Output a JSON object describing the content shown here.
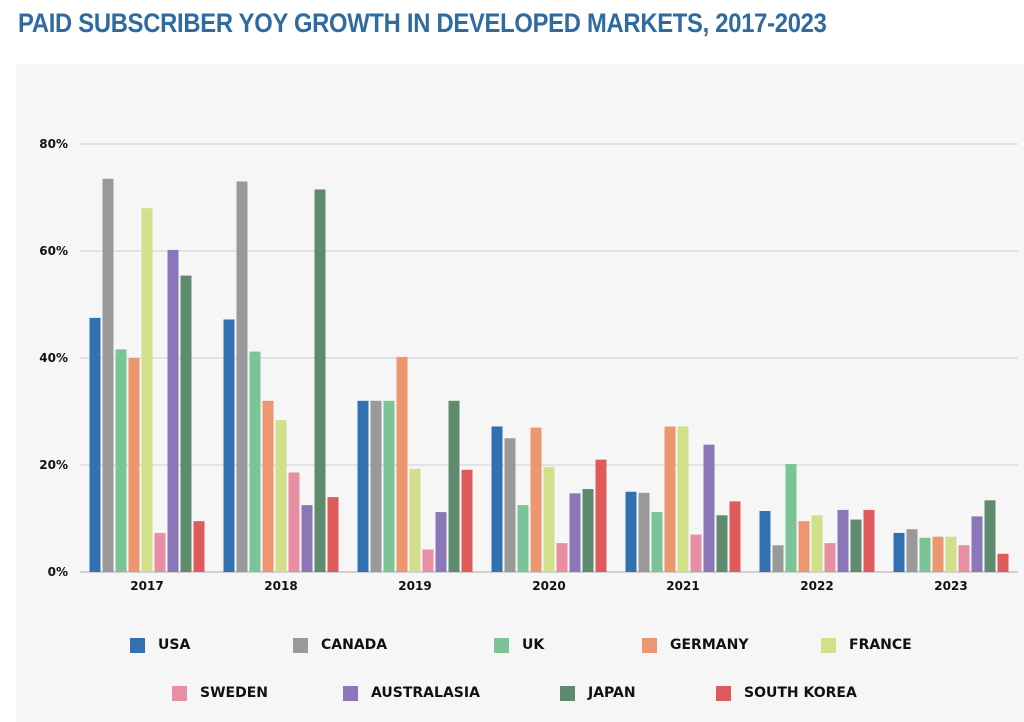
{
  "chart_data": {
    "type": "bar",
    "title": "PAID SUBSCRIBER YOY GROWTH IN DEVELOPED MARKETS, 2017-2023",
    "xlabel": "",
    "ylabel": "",
    "ylim": [
      0,
      80
    ],
    "yticks": [
      0,
      20,
      40,
      60,
      80
    ],
    "ytick_labels": [
      "0%",
      "20%",
      "40%",
      "60%",
      "80%"
    ],
    "grid": true,
    "legend_position": "bottom",
    "categories": [
      "2017",
      "2018",
      "2019",
      "2020",
      "2021",
      "2022",
      "2023"
    ],
    "series": [
      {
        "name": "USA",
        "color": "#3171b2",
        "values": [
          47.5,
          47.2,
          32.0,
          27.2,
          15.0,
          11.4,
          7.3
        ]
      },
      {
        "name": "CANADA",
        "color": "#999999",
        "values": [
          73.5,
          73.0,
          32.0,
          25.0,
          14.8,
          5.0,
          8.0
        ]
      },
      {
        "name": "UK",
        "color": "#7ac497",
        "values": [
          41.6,
          41.2,
          32.0,
          12.5,
          11.2,
          20.2,
          6.4
        ]
      },
      {
        "name": "GERMANY",
        "color": "#ec9770",
        "values": [
          40.0,
          32.0,
          40.2,
          27.0,
          27.2,
          9.5,
          6.6
        ]
      },
      {
        "name": "FRANCE",
        "color": "#d2e08b",
        "values": [
          68.0,
          28.4,
          19.3,
          19.6,
          27.2,
          10.6,
          6.6
        ]
      },
      {
        "name": "SWEDEN",
        "color": "#e88fa4",
        "values": [
          7.3,
          18.6,
          4.2,
          5.4,
          7.0,
          5.4,
          5.0
        ]
      },
      {
        "name": "AUSTRALASIA",
        "color": "#8b76b8",
        "values": [
          60.2,
          12.5,
          11.2,
          14.7,
          23.8,
          11.6,
          10.4
        ]
      },
      {
        "name": "JAPAN",
        "color": "#5e8b6e",
        "values": [
          55.4,
          71.5,
          32.0,
          15.5,
          10.6,
          9.8,
          13.4
        ]
      },
      {
        "name": "SOUTH KOREA",
        "color": "#df5b5b",
        "values": [
          9.5,
          14.0,
          19.1,
          21.0,
          13.2,
          11.6,
          3.4
        ]
      }
    ]
  }
}
